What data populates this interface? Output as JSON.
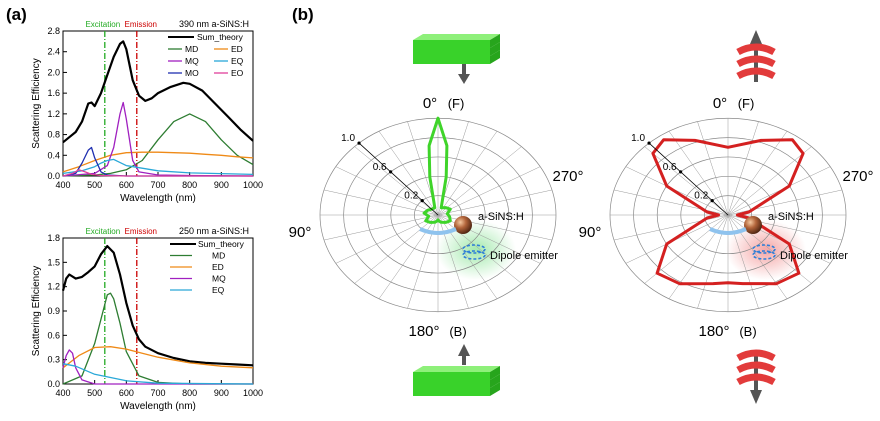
{
  "panels": {
    "a": "(a)",
    "b": "(b)"
  },
  "markers": {
    "excitation_label": "Excitation",
    "emission_label": "Emission",
    "excitation_nm": 532,
    "emission_nm": 633,
    "excitation_color": "#22aa22",
    "emission_color": "#cc0000"
  },
  "chart_data": [
    {
      "type": "line",
      "annotation": "390 nm a-SiNS:H",
      "xlabel": "Wavelength (nm)",
      "ylabel": "Scattering Efficiency",
      "xlim": [
        400,
        1000
      ],
      "ylim": [
        0,
        2.8
      ],
      "xticks": [
        "400",
        "500",
        "600",
        "700",
        "800",
        "900",
        "1000"
      ],
      "yticks": [
        "0.0",
        "0.4",
        "0.8",
        "1.2",
        "1.6",
        "2.0",
        "2.4",
        "2.8"
      ],
      "legend_position": "top-right",
      "series": [
        {
          "name": "Sum_theory",
          "color": "#000000",
          "x": [
            400,
            420,
            440,
            460,
            480,
            490,
            500,
            520,
            540,
            560,
            580,
            590,
            600,
            620,
            640,
            660,
            680,
            700,
            740,
            780,
            800,
            840,
            880,
            920,
            960,
            1000
          ],
          "y": [
            0.65,
            0.75,
            0.85,
            1.05,
            1.4,
            1.42,
            1.35,
            1.6,
            1.95,
            2.3,
            2.55,
            2.6,
            2.45,
            1.85,
            1.55,
            1.45,
            1.5,
            1.6,
            1.72,
            1.8,
            1.78,
            1.65,
            1.4,
            1.15,
            0.9,
            0.68
          ]
        },
        {
          "name": "MD",
          "color": "#2e7d32",
          "x": [
            400,
            450,
            500,
            550,
            600,
            650,
            700,
            750,
            800,
            850,
            900,
            950,
            1000
          ],
          "y": [
            0.0,
            0.01,
            0.02,
            0.05,
            0.12,
            0.3,
            0.7,
            1.05,
            1.2,
            1.05,
            0.7,
            0.4,
            0.22
          ]
        },
        {
          "name": "ED",
          "color": "#ef8a17",
          "x": [
            400,
            450,
            500,
            550,
            600,
            650,
            700,
            750,
            800,
            850,
            900,
            950,
            1000
          ],
          "y": [
            0.08,
            0.18,
            0.3,
            0.4,
            0.45,
            0.46,
            0.46,
            0.45,
            0.44,
            0.42,
            0.4,
            0.37,
            0.35
          ]
        },
        {
          "name": "MQ",
          "color": "#a020c0",
          "x": [
            400,
            500,
            540,
            560,
            580,
            590,
            600,
            620,
            640,
            700,
            800,
            1000
          ],
          "y": [
            0.0,
            0.05,
            0.2,
            0.55,
            1.2,
            1.42,
            1.1,
            0.3,
            0.08,
            0.02,
            0.01,
            0.0
          ]
        },
        {
          "name": "EQ",
          "color": "#2aa8d8",
          "x": [
            400,
            460,
            500,
            520,
            540,
            560,
            600,
            700,
            800,
            1000
          ],
          "y": [
            0.05,
            0.1,
            0.18,
            0.25,
            0.3,
            0.32,
            0.2,
            0.1,
            0.06,
            0.03
          ]
        },
        {
          "name": "MO",
          "color": "#1f2fb0",
          "x": [
            400,
            440,
            460,
            480,
            490,
            500,
            520,
            540,
            600,
            1000
          ],
          "y": [
            0.0,
            0.05,
            0.25,
            0.5,
            0.55,
            0.35,
            0.08,
            0.02,
            0.0,
            0.0
          ]
        },
        {
          "name": "EO",
          "color": "#e0409c",
          "x": [
            400,
            430,
            450,
            470,
            490,
            520,
            600,
            1000
          ],
          "y": [
            0.0,
            0.05,
            0.12,
            0.08,
            0.03,
            0.01,
            0.0,
            0.0
          ]
        }
      ]
    },
    {
      "type": "line",
      "annotation": "250 nm a-SiNS:H",
      "xlabel": "Wavelength (nm)",
      "ylabel": "Scattering Efficiency",
      "xlim": [
        400,
        1000
      ],
      "ylim": [
        0,
        1.8
      ],
      "xticks": [
        "400",
        "500",
        "600",
        "700",
        "800",
        "900",
        "1000"
      ],
      "yticks": [
        "0.0",
        "0.3",
        "0.6",
        "0.9",
        "1.2",
        "1.5",
        "1.8"
      ],
      "legend_position": "top-right",
      "series": [
        {
          "name": "Sum_theory",
          "color": "#000000",
          "x": [
            400,
            410,
            420,
            440,
            460,
            480,
            500,
            520,
            540,
            560,
            580,
            600,
            620,
            640,
            660,
            700,
            750,
            800,
            850,
            900,
            950,
            1000
          ],
          "y": [
            1.15,
            1.3,
            1.35,
            1.3,
            1.32,
            1.38,
            1.45,
            1.6,
            1.7,
            1.62,
            1.35,
            1.0,
            0.72,
            0.55,
            0.46,
            0.38,
            0.32,
            0.28,
            0.26,
            0.25,
            0.24,
            0.23
          ]
        },
        {
          "name": "MD",
          "color": "#2e7d32",
          "x": [
            400,
            460,
            500,
            520,
            540,
            550,
            560,
            580,
            600,
            640,
            700,
            800,
            1000
          ],
          "y": [
            0.0,
            0.1,
            0.5,
            0.8,
            1.1,
            1.12,
            1.05,
            0.75,
            0.4,
            0.1,
            0.02,
            0.0,
            0.0
          ]
        },
        {
          "name": "ED",
          "color": "#ef8a17",
          "x": [
            400,
            450,
            500,
            550,
            600,
            650,
            700,
            800,
            900,
            1000
          ],
          "y": [
            0.2,
            0.35,
            0.45,
            0.46,
            0.43,
            0.38,
            0.33,
            0.26,
            0.22,
            0.2
          ]
        },
        {
          "name": "MQ",
          "color": "#a020c0",
          "x": [
            400,
            410,
            420,
            430,
            440,
            460,
            500,
            1000
          ],
          "y": [
            0.2,
            0.35,
            0.42,
            0.38,
            0.2,
            0.05,
            0.0,
            0.0
          ]
        },
        {
          "name": "EQ",
          "color": "#2aa8d8",
          "x": [
            400,
            440,
            500,
            600,
            700,
            1000
          ],
          "y": [
            0.25,
            0.22,
            0.12,
            0.04,
            0.01,
            0.0
          ]
        }
      ]
    },
    {
      "type": "polar",
      "angle_labels": [
        "0°",
        "(F)",
        "90°",
        "180°",
        "(B)",
        "270°"
      ],
      "radial_labels": [
        "1.0",
        "0.6",
        "0.2"
      ],
      "rlim": [
        0,
        1.0
      ],
      "particle_label": "a-SiNS:H",
      "dipole_label": "Dipole emitter",
      "color": "#3fd42a",
      "pattern": [
        [
          0,
          1.0
        ],
        [
          6,
          0.72
        ],
        [
          10,
          0.4
        ],
        [
          14,
          0.15
        ],
        [
          20,
          0.08
        ],
        [
          40,
          0.1
        ],
        [
          60,
          0.12
        ],
        [
          80,
          0.08
        ],
        [
          100,
          0.1
        ],
        [
          120,
          0.12
        ],
        [
          140,
          0.1
        ],
        [
          160,
          0.08
        ],
        [
          175,
          0.06
        ],
        [
          180,
          0.05
        ],
        [
          185,
          0.06
        ],
        [
          200,
          0.08
        ],
        [
          220,
          0.1
        ],
        [
          240,
          0.12
        ],
        [
          260,
          0.08
        ],
        [
          280,
          0.12
        ],
        [
          300,
          0.1
        ],
        [
          320,
          0.08
        ],
        [
          340,
          0.08
        ],
        [
          346,
          0.15
        ],
        [
          350,
          0.4
        ],
        [
          354,
          0.72
        ],
        [
          360,
          1.0
        ]
      ]
    },
    {
      "type": "polar",
      "angle_labels": [
        "0°",
        "(F)",
        "90°",
        "180°",
        "(B)",
        "270°"
      ],
      "radial_labels": [
        "1.0",
        "0.6",
        "0.2"
      ],
      "rlim": [
        0,
        1.0
      ],
      "particle_label": "a-SiNS:H",
      "dipole_label": "Dipole emitter",
      "color": "#d42020",
      "pattern": [
        [
          0,
          0.7
        ],
        [
          20,
          0.82
        ],
        [
          35,
          0.95
        ],
        [
          45,
          0.9
        ],
        [
          60,
          0.6
        ],
        [
          80,
          0.18
        ],
        [
          90,
          0.08
        ],
        [
          100,
          0.18
        ],
        [
          120,
          0.6
        ],
        [
          135,
          0.85
        ],
        [
          150,
          0.82
        ],
        [
          170,
          0.72
        ],
        [
          180,
          0.7
        ],
        [
          190,
          0.72
        ],
        [
          210,
          0.82
        ],
        [
          225,
          0.85
        ],
        [
          240,
          0.6
        ],
        [
          260,
          0.18
        ],
        [
          270,
          0.08
        ],
        [
          280,
          0.18
        ],
        [
          300,
          0.6
        ],
        [
          315,
          0.9
        ],
        [
          325,
          0.95
        ],
        [
          340,
          0.82
        ],
        [
          360,
          0.7
        ]
      ]
    }
  ]
}
